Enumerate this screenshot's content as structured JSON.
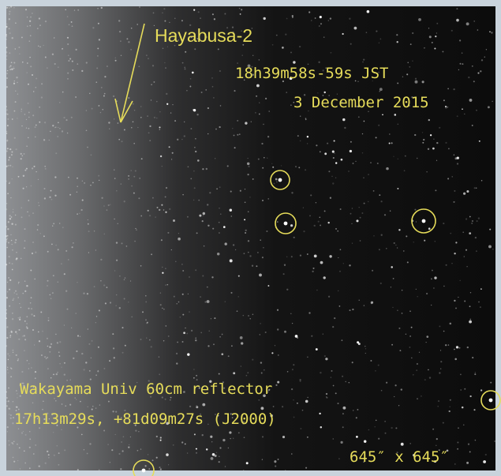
{
  "annotations": {
    "target": "Hayabusa-2",
    "time": "18h39m58s-59s JST",
    "date": "3 December 2015",
    "telescope": "Wakayama Univ 60cm reflector",
    "coordinates": "17h13m29s, +81d09m27s (J2000)",
    "field": "645″ x 645″"
  }
}
